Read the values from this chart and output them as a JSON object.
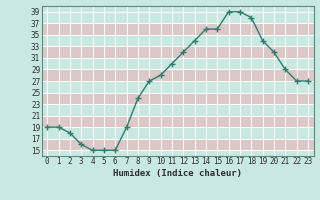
{
  "x": [
    0,
    1,
    2,
    3,
    4,
    5,
    6,
    7,
    8,
    9,
    10,
    11,
    12,
    13,
    14,
    15,
    16,
    17,
    18,
    19,
    20,
    21,
    22,
    23
  ],
  "y": [
    19,
    19,
    18,
    16,
    15,
    15,
    15,
    19,
    24,
    27,
    28,
    30,
    32,
    34,
    36,
    36,
    39,
    39,
    38,
    34,
    32,
    29,
    27,
    27
  ],
  "line_color": "#2e7d6e",
  "marker": "+",
  "bg_color": "#c8e8e0",
  "plot_bg_color": "#c8e8e0",
  "grid_color": "#aed4cc",
  "cell_color": "#ddc8c8",
  "xlabel": "Humidex (Indice chaleur)",
  "xlim": [
    -0.5,
    23.5
  ],
  "ylim": [
    14,
    40
  ],
  "yticks": [
    15,
    17,
    19,
    21,
    23,
    25,
    27,
    29,
    31,
    33,
    35,
    37,
    39
  ],
  "xtick_labels": [
    "0",
    "1",
    "2",
    "3",
    "4",
    "5",
    "6",
    "7",
    "8",
    "9",
    "10",
    "11",
    "12",
    "13",
    "14",
    "15",
    "16",
    "17",
    "18",
    "19",
    "20",
    "21",
    "22",
    "23"
  ],
  "font_color": "#2e3030",
  "linewidth": 1.0,
  "markersize": 4
}
